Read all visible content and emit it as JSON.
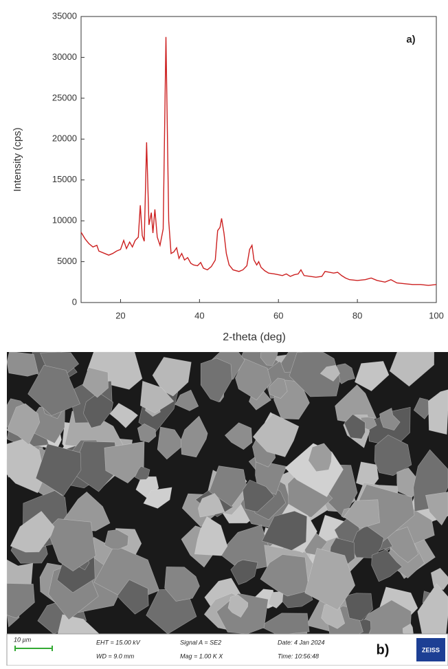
{
  "chart_data": {
    "type": "line",
    "xlabel": "2-theta (deg)",
    "ylabel": "Intensity (cps)",
    "annotation": "a)",
    "color": "#cc1f1f",
    "xlim": [
      10,
      100
    ],
    "ylim": [
      0,
      35000
    ],
    "xticks": [
      20,
      40,
      60,
      80,
      100
    ],
    "yticks": [
      0,
      5000,
      10000,
      15000,
      20000,
      25000,
      30000,
      35000
    ],
    "x": [
      10,
      11,
      12,
      13,
      14,
      14.5,
      16,
      17,
      18,
      19,
      20,
      20.8,
      21.5,
      22.3,
      23,
      23.7,
      24.5,
      25,
      25.5,
      26,
      26.6,
      27.2,
      27.8,
      28.2,
      28.7,
      29.3,
      30,
      30.8,
      31.5,
      32.2,
      32.8,
      33.5,
      34.2,
      34.8,
      35.5,
      36.2,
      37,
      37.8,
      38.5,
      39.5,
      40.3,
      41,
      42,
      43,
      44,
      44.6,
      45.2,
      45.6,
      46.2,
      46.8,
      47.5,
      48.5,
      50,
      51,
      52,
      52.7,
      53.3,
      53.8,
      54.5,
      55,
      55.6,
      56.5,
      57.5,
      59,
      60,
      61,
      62,
      63,
      64,
      65,
      65.7,
      66.5,
      68,
      69.5,
      71,
      71.8,
      73,
      74,
      75,
      76,
      77,
      78,
      80,
      82,
      83.5,
      85,
      87,
      88.5,
      90,
      92,
      94,
      96,
      98,
      100
    ],
    "values": [
      8600,
      7800,
      7200,
      6800,
      7000,
      6300,
      6000,
      5800,
      6000,
      6300,
      6500,
      7600,
      6600,
      7400,
      6800,
      7600,
      8000,
      11900,
      8200,
      7500,
      19600,
      9500,
      11000,
      8500,
      11400,
      8000,
      7000,
      9000,
      32500,
      10000,
      6000,
      6200,
      6700,
      5400,
      6000,
      5200,
      5500,
      4800,
      4600,
      4500,
      4900,
      4200,
      4000,
      4400,
      5200,
      8800,
      9200,
      10300,
      8500,
      6000,
      4600,
      4000,
      3800,
      4000,
      4500,
      6500,
      7000,
      5200,
      4600,
      5000,
      4300,
      3900,
      3600,
      3500,
      3400,
      3300,
      3500,
      3200,
      3400,
      3500,
      4000,
      3300,
      3200,
      3100,
      3200,
      3800,
      3700,
      3600,
      3700,
      3300,
      3000,
      2800,
      2700,
      2800,
      3000,
      2700,
      2500,
      2800,
      2400,
      2300,
      2200,
      2200,
      2100,
      2200
    ]
  },
  "sem_image": {
    "scale_bar": "10 µm",
    "eht": "EHT = 15.00 kV",
    "wd": "WD = 9.0 mm",
    "signal": "Signal A = SE2",
    "mag": "Mag =   1.00 K X",
    "date": "Date: 4 Jan 2024",
    "time": "Time: 10:56:48",
    "panel_label": "b)",
    "logo": "ZEISS"
  }
}
